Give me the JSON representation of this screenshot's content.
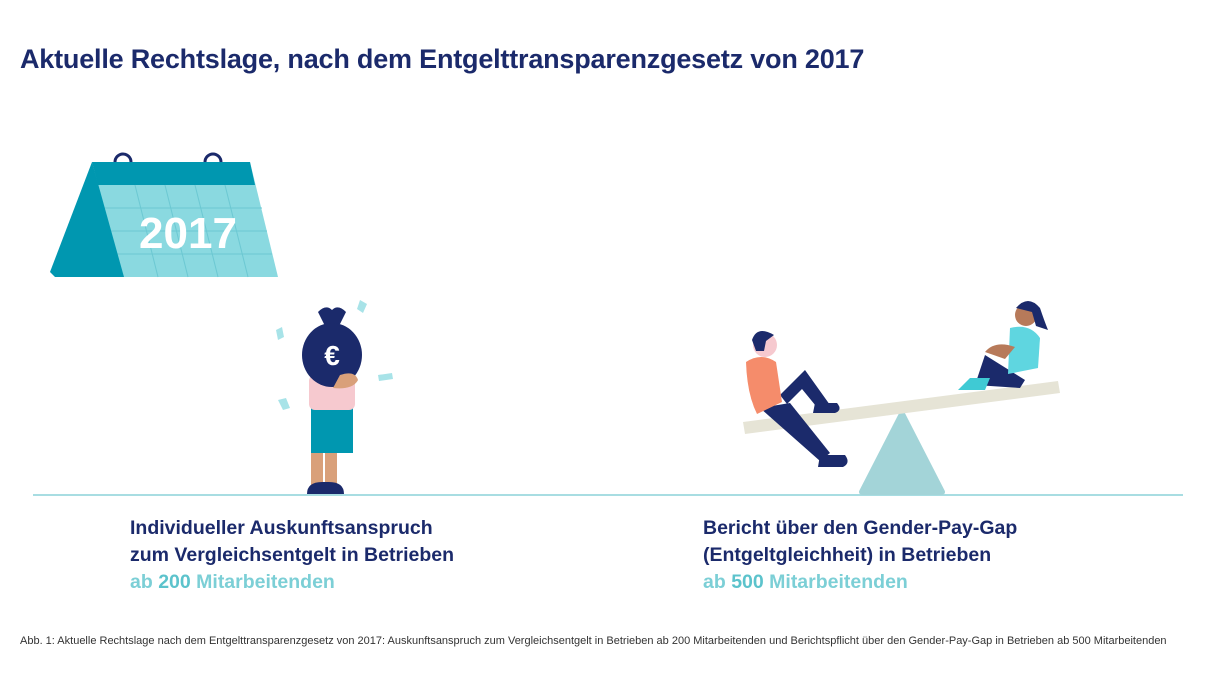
{
  "title": "Aktuelle Rechtslage, nach dem Entgelttransparenzgesetz von 2017",
  "calendar": {
    "year": "2017"
  },
  "left": {
    "line1": "Individueller Auskunftsanspruch",
    "line2": "zum Vergleichsentgelt in Betrieben",
    "prefix": "ab",
    "number": "200",
    "suffix": "Mitarbeitenden"
  },
  "right": {
    "line1": "Bericht über den Gender-Pay-Gap",
    "line2": "(Entgeltgleichheit) in Betrieben",
    "prefix": "ab",
    "number": "500",
    "suffix": "Mitarbeitenden"
  },
  "caption": "Abb. 1: Aktuelle Rechtslage nach dem Entgelttransparenzgesetz von 2017: Auskunftsanspruch zum Vergleichsentgelt in Betrieben ab 200 Mitarbeitenden und Berichtspflicht über den Gender-Pay-Gap in Betrieben ab 500 Mitarbeitenden",
  "colors": {
    "navy": "#1b2a6b",
    "teal": "#0097b0",
    "light_teal": "#8ad9e0",
    "accent": "#7ccfd6"
  }
}
